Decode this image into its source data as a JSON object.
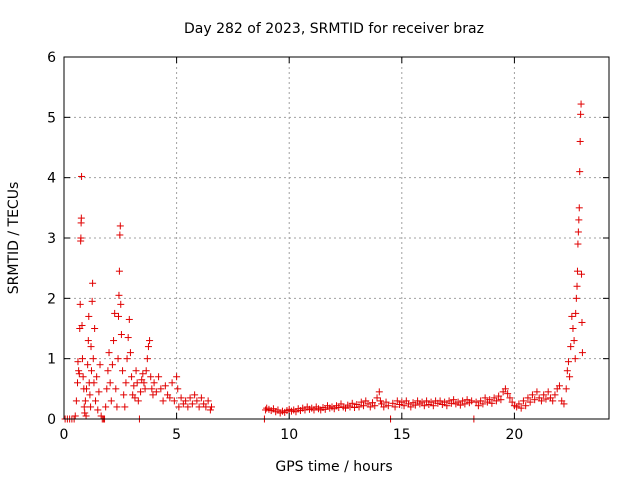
{
  "chart_data": {
    "type": "scatter",
    "title": "Day 282 of 2023, SRMTID for receiver braz",
    "xlabel": "GPS time / hours",
    "ylabel": "SRMTID / TECUs",
    "xlim": [
      0,
      24.2
    ],
    "ylim": [
      0,
      6
    ],
    "xticks": [
      0,
      5,
      10,
      15,
      20
    ],
    "yticks": [
      0,
      1,
      2,
      3,
      4,
      5,
      6
    ],
    "grid": true,
    "marker": "+",
    "color": "#e00000",
    "series": [
      {
        "name": "SRMTID",
        "points": [
          [
            0.05,
            0.0
          ],
          [
            0.15,
            0.0
          ],
          [
            0.25,
            0.0
          ],
          [
            0.35,
            0.0
          ],
          [
            0.45,
            0.0
          ],
          [
            0.5,
            0.05
          ],
          [
            0.55,
            0.3
          ],
          [
            0.6,
            0.6
          ],
          [
            0.62,
            0.95
          ],
          [
            0.65,
            0.8
          ],
          [
            0.68,
            0.75
          ],
          [
            0.7,
            1.5
          ],
          [
            0.72,
            1.9
          ],
          [
            0.74,
            2.95
          ],
          [
            0.75,
            3.0
          ],
          [
            0.76,
            3.25
          ],
          [
            0.77,
            3.33
          ],
          [
            0.78,
            4.02
          ],
          [
            0.8,
            1.55
          ],
          [
            0.82,
            1.0
          ],
          [
            0.85,
            0.7
          ],
          [
            0.88,
            0.5
          ],
          [
            0.9,
            0.2
          ],
          [
            0.92,
            0.1
          ],
          [
            0.95,
            0.3
          ],
          [
            0.98,
            0.05
          ],
          [
            1.0,
            0.5
          ],
          [
            1.05,
            0.9
          ],
          [
            1.08,
            1.3
          ],
          [
            1.1,
            1.7
          ],
          [
            1.12,
            0.6
          ],
          [
            1.15,
            0.4
          ],
          [
            1.18,
            0.2
          ],
          [
            1.2,
            1.2
          ],
          [
            1.22,
            0.8
          ],
          [
            1.25,
            1.95
          ],
          [
            1.27,
            2.25
          ],
          [
            1.3,
            1.0
          ],
          [
            1.33,
            0.6
          ],
          [
            1.36,
            1.5
          ],
          [
            1.4,
            0.3
          ],
          [
            1.45,
            0.7
          ],
          [
            1.5,
            0.15
          ],
          [
            1.55,
            0.45
          ],
          [
            1.6,
            0.9
          ],
          [
            1.65,
            0.05
          ],
          [
            1.7,
            0.0
          ],
          [
            1.75,
            0.0
          ],
          [
            1.8,
            0.0
          ],
          [
            1.85,
            0.2
          ],
          [
            1.9,
            0.5
          ],
          [
            1.95,
            0.8
          ],
          [
            2.0,
            1.1
          ],
          [
            2.05,
            0.6
          ],
          [
            2.1,
            0.3
          ],
          [
            2.15,
            0.9
          ],
          [
            2.2,
            1.3
          ],
          [
            2.25,
            1.75
          ],
          [
            2.3,
            0.5
          ],
          [
            2.35,
            0.2
          ],
          [
            2.4,
            1.0
          ],
          [
            2.42,
            1.7
          ],
          [
            2.44,
            2.05
          ],
          [
            2.46,
            2.45
          ],
          [
            2.48,
            3.05
          ],
          [
            2.5,
            3.2
          ],
          [
            2.52,
            1.9
          ],
          [
            2.55,
            1.4
          ],
          [
            2.6,
            0.8
          ],
          [
            2.65,
            0.4
          ],
          [
            2.7,
            0.2
          ],
          [
            2.75,
            0.6
          ],
          [
            2.8,
            1.0
          ],
          [
            2.85,
            1.35
          ],
          [
            2.9,
            1.65
          ],
          [
            2.95,
            1.1
          ],
          [
            3.0,
            0.7
          ],
          [
            3.05,
            0.4
          ],
          [
            3.1,
            0.55
          ],
          [
            3.15,
            0.35
          ],
          [
            3.2,
            0.8
          ],
          [
            3.25,
            0.6
          ],
          [
            3.3,
            0.3
          ],
          [
            3.35,
            0.0
          ],
          [
            3.4,
            0.45
          ],
          [
            3.45,
            0.65
          ],
          [
            3.5,
            0.75
          ],
          [
            3.55,
            0.6
          ],
          [
            3.6,
            0.5
          ],
          [
            3.65,
            0.8
          ],
          [
            3.7,
            1.0
          ],
          [
            3.75,
            1.2
          ],
          [
            3.8,
            1.3
          ],
          [
            3.85,
            0.7
          ],
          [
            3.9,
            0.5
          ],
          [
            3.95,
            0.4
          ],
          [
            4.0,
            0.6
          ],
          [
            4.1,
            0.45
          ],
          [
            4.2,
            0.7
          ],
          [
            4.3,
            0.5
          ],
          [
            4.4,
            0.3
          ],
          [
            4.5,
            0.55
          ],
          [
            4.6,
            0.4
          ],
          [
            4.7,
            0.35
          ],
          [
            4.8,
            0.6
          ],
          [
            4.9,
            0.3
          ],
          [
            5.0,
            0.7
          ],
          [
            5.05,
            0.5
          ],
          [
            5.1,
            0.2
          ],
          [
            5.2,
            0.35
          ],
          [
            5.3,
            0.25
          ],
          [
            5.4,
            0.3
          ],
          [
            5.5,
            0.2
          ],
          [
            5.6,
            0.35
          ],
          [
            5.7,
            0.25
          ],
          [
            5.8,
            0.4
          ],
          [
            5.9,
            0.3
          ],
          [
            6.0,
            0.2
          ],
          [
            6.1,
            0.35
          ],
          [
            6.2,
            0.25
          ],
          [
            6.3,
            0.2
          ],
          [
            6.4,
            0.3
          ],
          [
            6.5,
            0.15
          ],
          [
            6.55,
            0.2
          ],
          [
            8.9,
            0.0
          ],
          [
            8.95,
            0.15
          ],
          [
            9.0,
            0.18
          ],
          [
            9.1,
            0.16
          ],
          [
            9.2,
            0.14
          ],
          [
            9.3,
            0.17
          ],
          [
            9.4,
            0.12
          ],
          [
            9.5,
            0.15
          ],
          [
            9.6,
            0.1
          ],
          [
            9.7,
            0.13
          ],
          [
            9.8,
            0.11
          ],
          [
            9.9,
            0.14
          ],
          [
            10.0,
            0.16
          ],
          [
            10.1,
            0.13
          ],
          [
            10.2,
            0.15
          ],
          [
            10.3,
            0.12
          ],
          [
            10.4,
            0.17
          ],
          [
            10.5,
            0.14
          ],
          [
            10.6,
            0.18
          ],
          [
            10.7,
            0.15
          ],
          [
            10.8,
            0.2
          ],
          [
            10.9,
            0.16
          ],
          [
            11.0,
            0.18
          ],
          [
            11.1,
            0.15
          ],
          [
            11.2,
            0.2
          ],
          [
            11.3,
            0.17
          ],
          [
            11.4,
            0.15
          ],
          [
            11.5,
            0.19
          ],
          [
            11.6,
            0.16
          ],
          [
            11.7,
            0.22
          ],
          [
            11.8,
            0.18
          ],
          [
            11.9,
            0.2
          ],
          [
            12.0,
            0.17
          ],
          [
            12.1,
            0.22
          ],
          [
            12.2,
            0.19
          ],
          [
            12.3,
            0.25
          ],
          [
            12.4,
            0.2
          ],
          [
            12.5,
            0.18
          ],
          [
            12.6,
            0.23
          ],
          [
            12.7,
            0.2
          ],
          [
            12.8,
            0.26
          ],
          [
            12.9,
            0.19
          ],
          [
            13.0,
            0.24
          ],
          [
            13.1,
            0.2
          ],
          [
            13.2,
            0.28
          ],
          [
            13.3,
            0.22
          ],
          [
            13.4,
            0.3
          ],
          [
            13.5,
            0.25
          ],
          [
            13.6,
            0.2
          ],
          [
            13.7,
            0.27
          ],
          [
            13.8,
            0.22
          ],
          [
            13.9,
            0.35
          ],
          [
            14.0,
            0.45
          ],
          [
            14.05,
            0.3
          ],
          [
            14.1,
            0.25
          ],
          [
            14.2,
            0.2
          ],
          [
            14.3,
            0.28
          ],
          [
            14.4,
            0.22
          ],
          [
            14.5,
            0.0
          ],
          [
            14.6,
            0.26
          ],
          [
            14.7,
            0.2
          ],
          [
            14.8,
            0.3
          ],
          [
            14.9,
            0.24
          ],
          [
            15.0,
            0.28
          ],
          [
            15.1,
            0.22
          ],
          [
            15.2,
            0.3
          ],
          [
            15.3,
            0.25
          ],
          [
            15.4,
            0.2
          ],
          [
            15.5,
            0.27
          ],
          [
            15.6,
            0.23
          ],
          [
            15.7,
            0.3
          ],
          [
            15.8,
            0.25
          ],
          [
            15.9,
            0.28
          ],
          [
            16.0,
            0.22
          ],
          [
            16.1,
            0.3
          ],
          [
            16.2,
            0.24
          ],
          [
            16.3,
            0.28
          ],
          [
            16.4,
            0.22
          ],
          [
            16.5,
            0.3
          ],
          [
            16.6,
            0.26
          ],
          [
            16.7,
            0.3
          ],
          [
            16.8,
            0.24
          ],
          [
            16.9,
            0.28
          ],
          [
            17.0,
            0.22
          ],
          [
            17.1,
            0.3
          ],
          [
            17.2,
            0.26
          ],
          [
            17.3,
            0.32
          ],
          [
            17.4,
            0.25
          ],
          [
            17.5,
            0.28
          ],
          [
            17.6,
            0.23
          ],
          [
            17.7,
            0.3
          ],
          [
            17.8,
            0.25
          ],
          [
            17.9,
            0.32
          ],
          [
            18.0,
            0.27
          ],
          [
            18.1,
            0.3
          ],
          [
            18.2,
            0.0
          ],
          [
            18.3,
            0.28
          ],
          [
            18.4,
            0.22
          ],
          [
            18.5,
            0.3
          ],
          [
            18.6,
            0.25
          ],
          [
            18.7,
            0.35
          ],
          [
            18.8,
            0.28
          ],
          [
            18.9,
            0.32
          ],
          [
            19.0,
            0.26
          ],
          [
            19.1,
            0.35
          ],
          [
            19.2,
            0.3
          ],
          [
            19.3,
            0.38
          ],
          [
            19.4,
            0.32
          ],
          [
            19.5,
            0.45
          ],
          [
            19.6,
            0.5
          ],
          [
            19.7,
            0.42
          ],
          [
            19.8,
            0.35
          ],
          [
            19.9,
            0.28
          ],
          [
            20.0,
            0.22
          ],
          [
            20.1,
            0.2
          ],
          [
            20.2,
            0.25
          ],
          [
            20.3,
            0.18
          ],
          [
            20.4,
            0.3
          ],
          [
            20.5,
            0.22
          ],
          [
            20.6,
            0.35
          ],
          [
            20.7,
            0.28
          ],
          [
            20.8,
            0.4
          ],
          [
            20.9,
            0.32
          ],
          [
            21.0,
            0.45
          ],
          [
            21.1,
            0.35
          ],
          [
            21.2,
            0.3
          ],
          [
            21.3,
            0.4
          ],
          [
            21.4,
            0.33
          ],
          [
            21.5,
            0.45
          ],
          [
            21.6,
            0.35
          ],
          [
            21.7,
            0.3
          ],
          [
            21.8,
            0.4
          ],
          [
            21.9,
            0.5
          ],
          [
            22.0,
            0.55
          ],
          [
            22.1,
            0.3
          ],
          [
            22.2,
            0.25
          ],
          [
            22.3,
            0.5
          ],
          [
            22.35,
            0.8
          ],
          [
            22.4,
            0.95
          ],
          [
            22.45,
            0.7
          ],
          [
            22.5,
            1.2
          ],
          [
            22.55,
            1.7
          ],
          [
            22.6,
            1.5
          ],
          [
            22.65,
            1.3
          ],
          [
            22.7,
            1.0
          ],
          [
            22.72,
            1.75
          ],
          [
            22.75,
            2.0
          ],
          [
            22.78,
            2.2
          ],
          [
            22.8,
            2.45
          ],
          [
            22.82,
            2.9
          ],
          [
            22.84,
            3.1
          ],
          [
            22.86,
            3.3
          ],
          [
            22.88,
            3.5
          ],
          [
            22.9,
            4.1
          ],
          [
            22.92,
            4.6
          ],
          [
            22.94,
            5.05
          ],
          [
            22.96,
            5.22
          ],
          [
            22.98,
            2.4
          ],
          [
            23.0,
            1.6
          ],
          [
            23.02,
            1.1
          ]
        ]
      }
    ]
  }
}
